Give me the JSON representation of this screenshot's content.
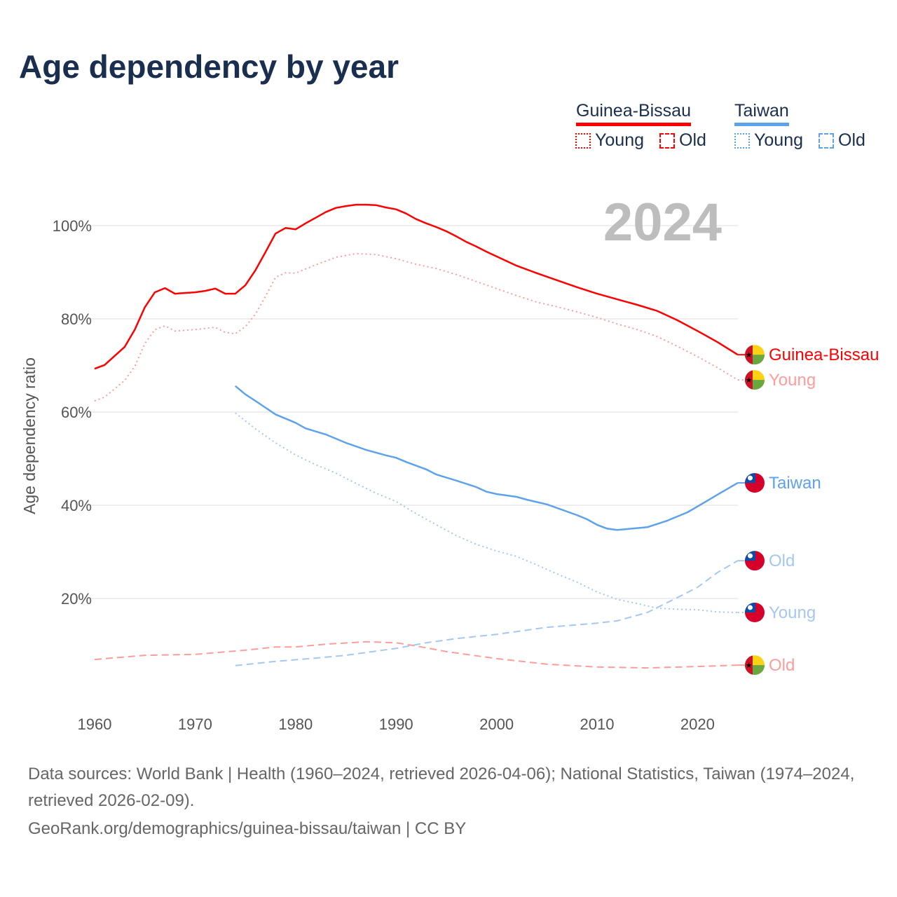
{
  "title": "Age dependency by year",
  "legend": {
    "countries": [
      {
        "name": "Guinea-Bissau",
        "color": "#ff0000",
        "light": "#ff9c9c",
        "young_label": "Young",
        "old_label": "Old"
      },
      {
        "name": "Taiwan",
        "color": "#5ea3ea",
        "light": "#a6c8ef",
        "young_label": "Young",
        "old_label": "Old"
      }
    ]
  },
  "chart_data": {
    "type": "line",
    "ylabel": "Age dependency ratio",
    "xlabel": "",
    "year_watermark": "2024",
    "xlim": [
      1960,
      2024
    ],
    "ylim": [
      0,
      105
    ],
    "x_ticks": [
      "1960",
      "1970",
      "1980",
      "1990",
      "2000",
      "2010",
      "2020"
    ],
    "y_ticks": [
      {
        "v": 20,
        "label": "20%"
      },
      {
        "v": 40,
        "label": "40%"
      },
      {
        "v": 60,
        "label": "60%"
      },
      {
        "v": 80,
        "label": "80%"
      },
      {
        "v": 100,
        "label": "100%"
      }
    ],
    "grid": true,
    "series": [
      {
        "name": "Guinea-Bissau",
        "end_label": "Guinea-Bissau",
        "country": "gw",
        "style": "solid",
        "tone": "dark",
        "color": "#ff0000",
        "points": [
          [
            1960,
            69.3
          ],
          [
            1961,
            70.1
          ],
          [
            1963,
            74
          ],
          [
            1964,
            77.7
          ],
          [
            1965,
            82.5
          ],
          [
            1966,
            85.7
          ],
          [
            1967,
            86.6
          ],
          [
            1968,
            85.4
          ],
          [
            1970,
            85.7
          ],
          [
            1971,
            86
          ],
          [
            1972,
            86.5
          ],
          [
            1973,
            85.4
          ],
          [
            1974,
            85.4
          ],
          [
            1975,
            87.2
          ],
          [
            1976,
            90.4
          ],
          [
            1977,
            94.3
          ],
          [
            1978,
            98.3
          ],
          [
            1979,
            99.5
          ],
          [
            1980,
            99.2
          ],
          [
            1981,
            100.5
          ],
          [
            1982,
            101.7
          ],
          [
            1983,
            102.9
          ],
          [
            1984,
            103.8
          ],
          [
            1985,
            104.2
          ],
          [
            1986,
            104.5
          ],
          [
            1987,
            104.5
          ],
          [
            1988,
            104.4
          ],
          [
            1989,
            103.9
          ],
          [
            1990,
            103.5
          ],
          [
            1991,
            102.6
          ],
          [
            1992,
            101.4
          ],
          [
            1993,
            100.5
          ],
          [
            1994,
            99.7
          ],
          [
            1995,
            98.8
          ],
          [
            1996,
            97.7
          ],
          [
            1997,
            96.5
          ],
          [
            1998,
            95.5
          ],
          [
            1999,
            94.4
          ],
          [
            2000,
            93.4
          ],
          [
            2002,
            91.4
          ],
          [
            2004,
            89.8
          ],
          [
            2006,
            88.3
          ],
          [
            2008,
            86.8
          ],
          [
            2010,
            85.4
          ],
          [
            2012,
            84.2
          ],
          [
            2014,
            83
          ],
          [
            2016,
            81.7
          ],
          [
            2018,
            79.7
          ],
          [
            2020,
            77.4
          ],
          [
            2022,
            75
          ],
          [
            2024,
            72.3
          ]
        ]
      },
      {
        "name": "Guinea-Bissau Young",
        "end_label": "Young",
        "country": "gw",
        "style": "dotted",
        "tone": "light",
        "color": "#ff9c9c",
        "points": [
          [
            1960,
            62.4
          ],
          [
            1961,
            63.2
          ],
          [
            1963,
            66.8
          ],
          [
            1964,
            69.8
          ],
          [
            1965,
            74.7
          ],
          [
            1966,
            77.7
          ],
          [
            1967,
            78.5
          ],
          [
            1968,
            77.4
          ],
          [
            1970,
            77.7
          ],
          [
            1972,
            78.2
          ],
          [
            1973,
            77.1
          ],
          [
            1974,
            76.8
          ],
          [
            1975,
            78.3
          ],
          [
            1976,
            81
          ],
          [
            1977,
            84.8
          ],
          [
            1978,
            88.9
          ],
          [
            1979,
            89.9
          ],
          [
            1980,
            89.8
          ],
          [
            1982,
            91.6
          ],
          [
            1984,
            93.2
          ],
          [
            1986,
            94
          ],
          [
            1988,
            93.8
          ],
          [
            1990,
            92.9
          ],
          [
            1992,
            91.7
          ],
          [
            1994,
            90.8
          ],
          [
            1996,
            89.5
          ],
          [
            1998,
            88
          ],
          [
            2000,
            86.5
          ],
          [
            2002,
            85
          ],
          [
            2004,
            83.6
          ],
          [
            2006,
            82.6
          ],
          [
            2008,
            81.5
          ],
          [
            2010,
            80.3
          ],
          [
            2012,
            78.9
          ],
          [
            2014,
            77.7
          ],
          [
            2016,
            76.2
          ],
          [
            2018,
            74.1
          ],
          [
            2020,
            71.9
          ],
          [
            2022,
            69.5
          ],
          [
            2024,
            66.9
          ]
        ]
      },
      {
        "name": "Guinea-Bissau Old",
        "end_label": "Old",
        "country": "gw",
        "style": "dashed",
        "tone": "light",
        "color": "#ff9c9c",
        "points": [
          [
            1960,
            6.9
          ],
          [
            1965,
            7.8
          ],
          [
            1970,
            8
          ],
          [
            1975,
            8.9
          ],
          [
            1978,
            9.6
          ],
          [
            1980,
            9.6
          ],
          [
            1983,
            10.2
          ],
          [
            1987,
            10.7
          ],
          [
            1990,
            10.5
          ],
          [
            1992,
            9.8
          ],
          [
            1995,
            8.6
          ],
          [
            2000,
            7.1
          ],
          [
            2005,
            5.9
          ],
          [
            2010,
            5.3
          ],
          [
            2015,
            5.1
          ],
          [
            2020,
            5.4
          ],
          [
            2024,
            5.7
          ]
        ]
      },
      {
        "name": "Taiwan",
        "end_label": "Taiwan",
        "country": "tw",
        "style": "solid",
        "tone": "dark",
        "color": "#5ea3ea",
        "points": [
          [
            1974,
            65.6
          ],
          [
            1975,
            63.8
          ],
          [
            1976,
            62.4
          ],
          [
            1978,
            59.5
          ],
          [
            1980,
            57.7
          ],
          [
            1981,
            56.5
          ],
          [
            1983,
            55.2
          ],
          [
            1985,
            53.4
          ],
          [
            1987,
            51.9
          ],
          [
            1989,
            50.7
          ],
          [
            1990,
            50.2
          ],
          [
            1991,
            49.3
          ],
          [
            1993,
            47.7
          ],
          [
            1994,
            46.6
          ],
          [
            1996,
            45.3
          ],
          [
            1998,
            43.9
          ],
          [
            1999,
            42.9
          ],
          [
            2000,
            42.4
          ],
          [
            2002,
            41.8
          ],
          [
            2003,
            41.2
          ],
          [
            2005,
            40.2
          ],
          [
            2008,
            37.9
          ],
          [
            2009,
            37
          ],
          [
            2010,
            35.8
          ],
          [
            2011,
            35
          ],
          [
            2012,
            34.7
          ],
          [
            2015,
            35.3
          ],
          [
            2017,
            36.7
          ],
          [
            2019,
            38.5
          ],
          [
            2021,
            41
          ],
          [
            2022,
            42.3
          ],
          [
            2024,
            44.8
          ]
        ]
      },
      {
        "name": "Taiwan Old",
        "end_label": "Old",
        "country": "tw",
        "style": "dashed",
        "tone": "light",
        "color": "#a6c8ef",
        "points": [
          [
            1974,
            5.6
          ],
          [
            1978,
            6.5
          ],
          [
            1982,
            7.2
          ],
          [
            1985,
            7.8
          ],
          [
            1990,
            9.3
          ],
          [
            1993,
            10.5
          ],
          [
            1996,
            11.4
          ],
          [
            2000,
            12.3
          ],
          [
            2005,
            13.8
          ],
          [
            2010,
            14.7
          ],
          [
            2012,
            15.2
          ],
          [
            2015,
            17
          ],
          [
            2018,
            20.2
          ],
          [
            2020,
            22.4
          ],
          [
            2022,
            25.6
          ],
          [
            2024,
            28.1
          ]
        ]
      },
      {
        "name": "Taiwan Young",
        "end_label": "Young",
        "country": "tw",
        "style": "dotted",
        "tone": "light",
        "color": "#a6c8ef",
        "points": [
          [
            1974,
            59.8
          ],
          [
            1976,
            56.4
          ],
          [
            1978,
            53.4
          ],
          [
            1980,
            50.8
          ],
          [
            1982,
            48.7
          ],
          [
            1984,
            46.9
          ],
          [
            1986,
            44.7
          ],
          [
            1988,
            42.6
          ],
          [
            1990,
            40.8
          ],
          [
            1992,
            38.2
          ],
          [
            1994,
            35.8
          ],
          [
            1996,
            33.5
          ],
          [
            1998,
            31.6
          ],
          [
            2000,
            30.2
          ],
          [
            2002,
            29
          ],
          [
            2004,
            27.2
          ],
          [
            2006,
            25.3
          ],
          [
            2008,
            23.5
          ],
          [
            2010,
            21.4
          ],
          [
            2012,
            19.8
          ],
          [
            2014,
            18.9
          ],
          [
            2016,
            17.9
          ],
          [
            2018,
            17.7
          ],
          [
            2020,
            17.6
          ],
          [
            2022,
            17.1
          ],
          [
            2024,
            17
          ]
        ]
      }
    ]
  },
  "footer": {
    "sources": "Data sources: World Bank | Health (1960–2024, retrieved 2026-04-06); National Statistics, Taiwan (1974–2024, retrieved 2026-02-09).",
    "credit": "GeoRank.org/demographics/guinea-bissau/taiwan | CC BY"
  }
}
